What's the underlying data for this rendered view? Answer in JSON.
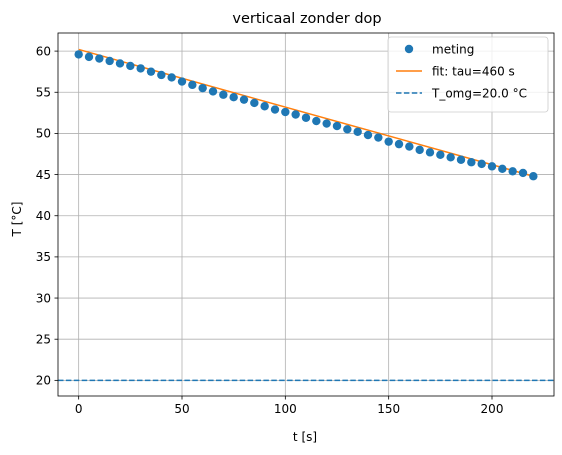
{
  "chart_data": {
    "type": "scatter",
    "title": "verticaal zonder dop",
    "xlabel": "t [s]",
    "ylabel": "T [°C]",
    "xlim": [
      -10,
      230
    ],
    "ylim": [
      18.1,
      62.2
    ],
    "xticks": [
      0,
      50,
      100,
      150,
      200
    ],
    "yticks": [
      20,
      25,
      30,
      35,
      40,
      45,
      50,
      55,
      60
    ],
    "grid": true,
    "legend_position": "top-right",
    "series": [
      {
        "name": "meting",
        "kind": "scatter",
        "color": "#1f77b4",
        "x": [
          0,
          5,
          10,
          15,
          20,
          25,
          30,
          35,
          40,
          45,
          50,
          55,
          60,
          65,
          70,
          75,
          80,
          85,
          90,
          95,
          100,
          105,
          110,
          115,
          120,
          125,
          130,
          135,
          140,
          145,
          150,
          155,
          160,
          165,
          170,
          175,
          180,
          185,
          190,
          195,
          200,
          205,
          210,
          215,
          220
        ],
        "y": [
          59.6,
          59.3,
          59.1,
          58.8,
          58.5,
          58.2,
          57.9,
          57.5,
          57.1,
          56.8,
          56.3,
          55.9,
          55.5,
          55.1,
          54.7,
          54.4,
          54.1,
          53.7,
          53.3,
          52.9,
          52.6,
          52.3,
          51.9,
          51.5,
          51.2,
          50.9,
          50.5,
          50.2,
          49.8,
          49.5,
          49.0,
          48.7,
          48.4,
          48.0,
          47.7,
          47.4,
          47.1,
          46.8,
          46.5,
          46.3,
          46.0,
          45.7,
          45.4,
          45.2,
          44.8
        ]
      },
      {
        "name": "fit: tau=460 s",
        "kind": "line",
        "color": "#ff7f0e",
        "x": [
          0,
          220
        ],
        "y": [
          60.2,
          44.8
        ]
      },
      {
        "name": "T_omg=20.0 °C",
        "kind": "hline",
        "color": "#1f77b4",
        "y": 20.0
      }
    ]
  }
}
